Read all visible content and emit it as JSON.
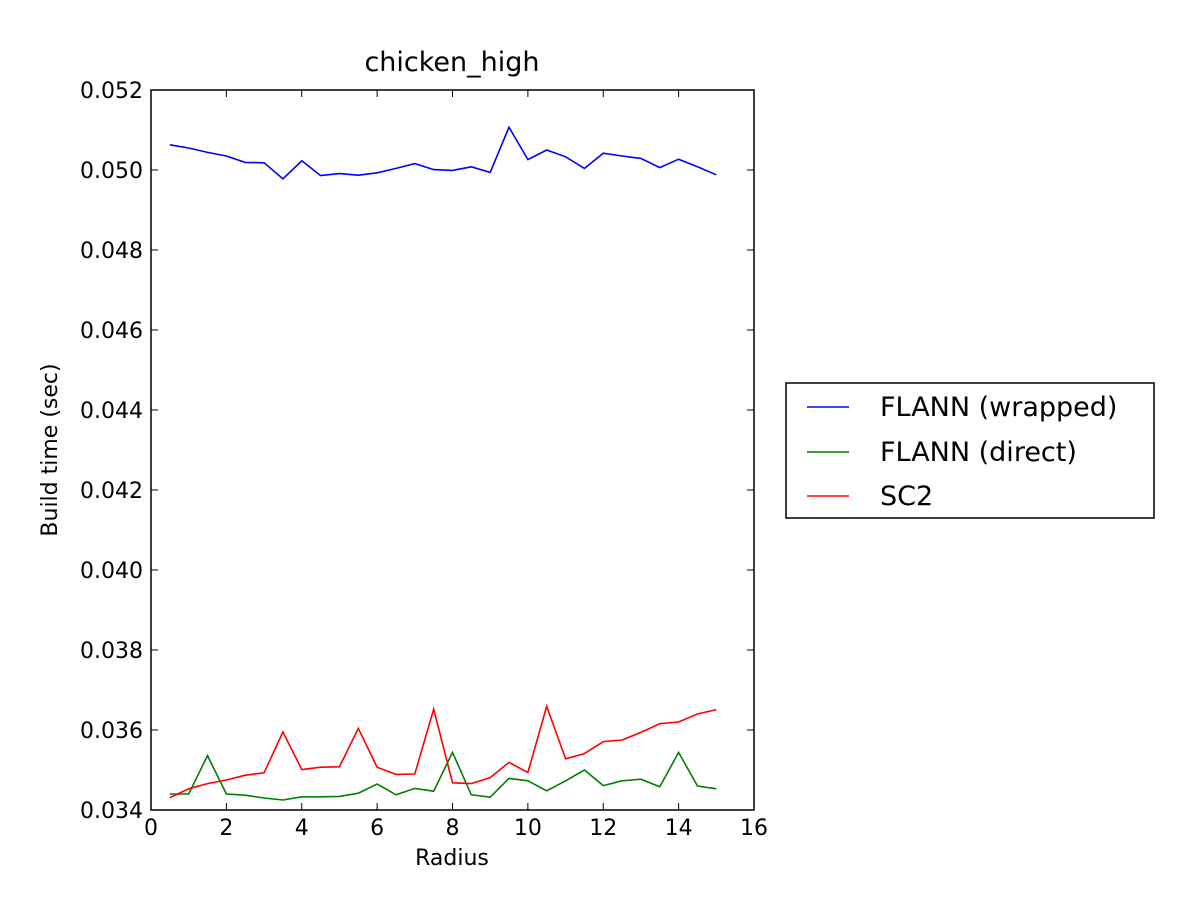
{
  "chart_data": {
    "type": "line",
    "title": "chicken_high",
    "xlabel": "Radius",
    "ylabel": "Build time (sec)",
    "xlim": [
      0,
      16
    ],
    "ylim": [
      0.034,
      0.052
    ],
    "xticks": [
      "0",
      "2",
      "4",
      "6",
      "8",
      "10",
      "12",
      "14",
      "16"
    ],
    "yticks": [
      "0.034",
      "0.036",
      "0.038",
      "0.040",
      "0.042",
      "0.044",
      "0.046",
      "0.048",
      "0.050",
      "0.052"
    ],
    "grid": false,
    "legend_position": "right",
    "x": [
      0.5,
      1.0,
      1.5,
      2.0,
      2.5,
      3.0,
      3.5,
      4.0,
      4.5,
      5.0,
      5.5,
      6.0,
      6.5,
      7.0,
      7.5,
      8.0,
      8.5,
      9.0,
      9.5,
      10.0,
      10.5,
      11.0,
      11.5,
      12.0,
      12.5,
      13.0,
      13.5,
      14.0,
      14.5,
      15.0
    ],
    "series": [
      {
        "name": "FLANN (wrapped)",
        "color": "#0000ff",
        "values": [
          0.05063,
          0.05055,
          0.05044,
          0.05035,
          0.05019,
          0.05018,
          0.04978,
          0.05023,
          0.04986,
          0.04991,
          0.04987,
          0.04993,
          0.05004,
          0.05016,
          0.05001,
          0.04999,
          0.05008,
          0.04994,
          0.05107,
          0.05026,
          0.0505,
          0.05033,
          0.05004,
          0.05042,
          0.05035,
          0.05029,
          0.05006,
          0.05027,
          0.05008,
          0.04988
        ]
      },
      {
        "name": "FLANN (direct)",
        "color": "#008000",
        "values": [
          0.0344,
          0.0344,
          0.03536,
          0.0344,
          0.03437,
          0.0343,
          0.03425,
          0.03433,
          0.03433,
          0.03434,
          0.03442,
          0.03465,
          0.03438,
          0.03454,
          0.03447,
          0.03544,
          0.03438,
          0.03432,
          0.03479,
          0.03473,
          0.03448,
          0.03473,
          0.035,
          0.03461,
          0.03473,
          0.03477,
          0.03458,
          0.03544,
          0.0346,
          0.03453
        ]
      },
      {
        "name": "SC2",
        "color": "#ff0000",
        "values": [
          0.03431,
          0.03453,
          0.03466,
          0.03475,
          0.03487,
          0.03493,
          0.03595,
          0.03501,
          0.03507,
          0.03508,
          0.03604,
          0.03507,
          0.03489,
          0.0349,
          0.03652,
          0.03468,
          0.03466,
          0.03481,
          0.03519,
          0.03494,
          0.03659,
          0.03528,
          0.03541,
          0.03571,
          0.03575,
          0.03594,
          0.03616,
          0.0362,
          0.0364,
          0.03651
        ]
      }
    ]
  }
}
